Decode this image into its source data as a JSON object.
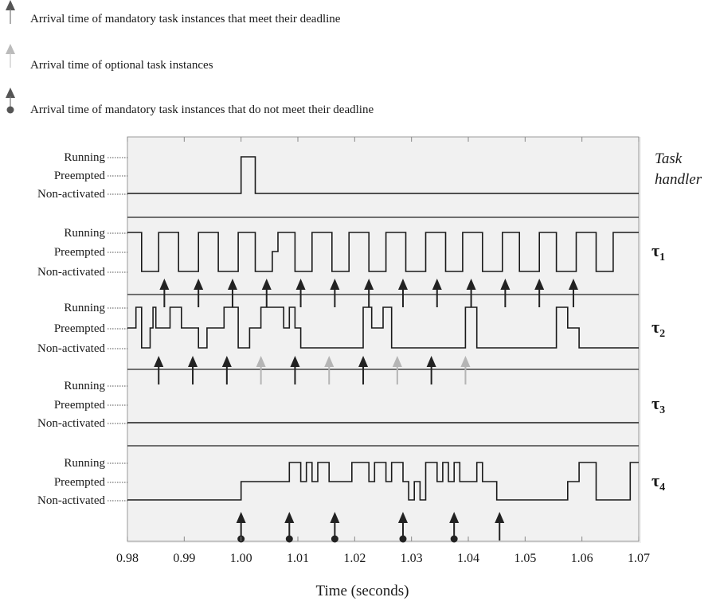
{
  "legend": [
    {
      "label": "Arrival time of mandatory task instances that meet their deadline",
      "marker": "mandatory-met-arrow",
      "color": "#333333"
    },
    {
      "label": "Arrival time of optional task instances",
      "marker": "optional-arrow",
      "color": "#aaaaaa"
    },
    {
      "label": "Arrival time of mandatory task instances that do not meet their deadline",
      "marker": "mandatory-missed-arrow",
      "color": "#333333"
    }
  ],
  "chart_data": {
    "type": "line",
    "xlabel": "Time (seconds)",
    "xlim": [
      0.98,
      1.07
    ],
    "x_ticks": [
      "0.98",
      "0.99",
      "1.00",
      "1.01",
      "1.02",
      "1.03",
      "1.04",
      "1.05",
      "1.06",
      "1.07"
    ],
    "state_levels": [
      "Running",
      "Preempted",
      "Non-activated"
    ],
    "grid": false,
    "panels": [
      {
        "name_parts": [
          "Task",
          "handler"
        ],
        "italic": true,
        "series": [
          [
            0.98,
            0
          ],
          [
            1.0,
            0
          ],
          [
            1.0,
            2
          ],
          [
            1.0025,
            2
          ],
          [
            1.0025,
            0
          ],
          [
            1.07,
            0
          ]
        ],
        "arrivals": []
      },
      {
        "name_parts": [
          "τ",
          "1"
        ],
        "series": [
          [
            0.98,
            2
          ],
          [
            0.9825,
            2
          ],
          [
            0.9825,
            0
          ],
          [
            0.9855,
            0
          ],
          [
            0.9855,
            2
          ],
          [
            0.989,
            2
          ],
          [
            0.989,
            0
          ],
          [
            0.9925,
            0
          ],
          [
            0.9925,
            2
          ],
          [
            0.996,
            2
          ],
          [
            0.996,
            0
          ],
          [
            0.9995,
            0
          ],
          [
            0.9995,
            2
          ],
          [
            1.0025,
            2
          ],
          [
            1.0025,
            0
          ],
          [
            1.0055,
            0
          ],
          [
            1.0055,
            1
          ],
          [
            1.0065,
            1
          ],
          [
            1.0065,
            2
          ],
          [
            1.0095,
            2
          ],
          [
            1.0095,
            0
          ],
          [
            1.0125,
            0
          ],
          [
            1.0125,
            2
          ],
          [
            1.016,
            2
          ],
          [
            1.016,
            0
          ],
          [
            1.019,
            0
          ],
          [
            1.019,
            2
          ],
          [
            1.0225,
            2
          ],
          [
            1.0225,
            0
          ],
          [
            1.0255,
            0
          ],
          [
            1.0255,
            2
          ],
          [
            1.029,
            2
          ],
          [
            1.029,
            0
          ],
          [
            1.0325,
            0
          ],
          [
            1.0325,
            2
          ],
          [
            1.036,
            2
          ],
          [
            1.036,
            0
          ],
          [
            1.039,
            0
          ],
          [
            1.039,
            2
          ],
          [
            1.0425,
            2
          ],
          [
            1.0425,
            0
          ],
          [
            1.046,
            0
          ],
          [
            1.046,
            2
          ],
          [
            1.049,
            2
          ],
          [
            1.049,
            0
          ],
          [
            1.0525,
            0
          ],
          [
            1.0525,
            2
          ],
          [
            1.0555,
            2
          ],
          [
            1.0555,
            0
          ],
          [
            1.059,
            0
          ],
          [
            1.059,
            2
          ],
          [
            1.0625,
            2
          ],
          [
            1.0625,
            0
          ],
          [
            1.0655,
            0
          ],
          [
            1.0655,
            2
          ],
          [
            1.07,
            2
          ]
        ],
        "arrivals": [
          {
            "t": 0.9865,
            "kind": "mandatory-met"
          },
          {
            "t": 0.9925,
            "kind": "mandatory-met"
          },
          {
            "t": 0.9985,
            "kind": "mandatory-met"
          },
          {
            "t": 1.0045,
            "kind": "mandatory-met"
          },
          {
            "t": 1.0105,
            "kind": "mandatory-met"
          },
          {
            "t": 1.0165,
            "kind": "mandatory-met"
          },
          {
            "t": 1.0225,
            "kind": "mandatory-met"
          },
          {
            "t": 1.0285,
            "kind": "mandatory-met"
          },
          {
            "t": 1.0345,
            "kind": "mandatory-met"
          },
          {
            "t": 1.0405,
            "kind": "mandatory-met"
          },
          {
            "t": 1.0465,
            "kind": "mandatory-met"
          },
          {
            "t": 1.0525,
            "kind": "mandatory-met"
          },
          {
            "t": 1.0585,
            "kind": "mandatory-met"
          }
        ]
      },
      {
        "name_parts": [
          "τ",
          "2"
        ],
        "series": [
          [
            0.98,
            1
          ],
          [
            0.9815,
            1
          ],
          [
            0.9815,
            2
          ],
          [
            0.9825,
            2
          ],
          [
            0.9825,
            0
          ],
          [
            0.984,
            0
          ],
          [
            0.984,
            1
          ],
          [
            0.9845,
            1
          ],
          [
            0.9845,
            2
          ],
          [
            0.985,
            2
          ],
          [
            0.985,
            1
          ],
          [
            0.9875,
            1
          ],
          [
            0.9875,
            2
          ],
          [
            0.9895,
            2
          ],
          [
            0.9895,
            1
          ],
          [
            0.9925,
            1
          ],
          [
            0.9925,
            0
          ],
          [
            0.994,
            0
          ],
          [
            0.994,
            1
          ],
          [
            0.997,
            1
          ],
          [
            0.997,
            2
          ],
          [
            0.9995,
            2
          ],
          [
            0.9995,
            0
          ],
          [
            1.0015,
            0
          ],
          [
            1.0015,
            1
          ],
          [
            1.0035,
            1
          ],
          [
            1.0035,
            2
          ],
          [
            1.0075,
            2
          ],
          [
            1.0075,
            1
          ],
          [
            1.0085,
            1
          ],
          [
            1.0085,
            2
          ],
          [
            1.0095,
            2
          ],
          [
            1.0095,
            1
          ],
          [
            1.0105,
            1
          ],
          [
            1.0105,
            0
          ],
          [
            1.0215,
            0
          ],
          [
            1.0215,
            2
          ],
          [
            1.023,
            2
          ],
          [
            1.023,
            1
          ],
          [
            1.025,
            1
          ],
          [
            1.025,
            2
          ],
          [
            1.0265,
            2
          ],
          [
            1.0265,
            0
          ],
          [
            1.0395,
            0
          ],
          [
            1.0395,
            2
          ],
          [
            1.0415,
            2
          ],
          [
            1.0415,
            0
          ],
          [
            1.0555,
            0
          ],
          [
            1.0555,
            2
          ],
          [
            1.0575,
            2
          ],
          [
            1.0575,
            1
          ],
          [
            1.0595,
            1
          ],
          [
            1.0595,
            0
          ],
          [
            1.07,
            0
          ]
        ],
        "arrivals": [
          {
            "t": 0.9855,
            "kind": "mandatory-met"
          },
          {
            "t": 0.9915,
            "kind": "mandatory-met"
          },
          {
            "t": 0.9975,
            "kind": "mandatory-met"
          },
          {
            "t": 1.0035,
            "kind": "optional"
          },
          {
            "t": 1.0095,
            "kind": "mandatory-met"
          },
          {
            "t": 1.0155,
            "kind": "optional"
          },
          {
            "t": 1.0215,
            "kind": "mandatory-met"
          },
          {
            "t": 1.0275,
            "kind": "optional"
          },
          {
            "t": 1.0335,
            "kind": "mandatory-met"
          },
          {
            "t": 1.0395,
            "kind": "optional"
          }
        ]
      },
      {
        "name_parts": [
          "τ",
          "3"
        ],
        "series": [
          [
            0.98,
            0
          ],
          [
            1.07,
            0
          ]
        ],
        "arrivals": []
      },
      {
        "name_parts": [
          "τ",
          "4"
        ],
        "series": [
          [
            0.98,
            0
          ],
          [
            1.0,
            0
          ],
          [
            1.0,
            1
          ],
          [
            1.0085,
            1
          ],
          [
            1.0085,
            2
          ],
          [
            1.0105,
            2
          ],
          [
            1.0105,
            1
          ],
          [
            1.0115,
            1
          ],
          [
            1.0115,
            2
          ],
          [
            1.0125,
            2
          ],
          [
            1.0125,
            1
          ],
          [
            1.0135,
            1
          ],
          [
            1.0135,
            2
          ],
          [
            1.0155,
            2
          ],
          [
            1.0155,
            1
          ],
          [
            1.0195,
            1
          ],
          [
            1.0195,
            2
          ],
          [
            1.0225,
            2
          ],
          [
            1.0225,
            1
          ],
          [
            1.0235,
            1
          ],
          [
            1.0235,
            2
          ],
          [
            1.0255,
            2
          ],
          [
            1.0255,
            1
          ],
          [
            1.0265,
            1
          ],
          [
            1.0265,
            2
          ],
          [
            1.0285,
            2
          ],
          [
            1.0285,
            1
          ],
          [
            1.0295,
            1
          ],
          [
            1.0295,
            0
          ],
          [
            1.0305,
            0
          ],
          [
            1.0305,
            1
          ],
          [
            1.0315,
            1
          ],
          [
            1.0315,
            0
          ],
          [
            1.0325,
            0
          ],
          [
            1.0325,
            2
          ],
          [
            1.0345,
            2
          ],
          [
            1.0345,
            1
          ],
          [
            1.0355,
            1
          ],
          [
            1.0355,
            2
          ],
          [
            1.0365,
            2
          ],
          [
            1.0365,
            1
          ],
          [
            1.0375,
            1
          ],
          [
            1.0375,
            2
          ],
          [
            1.0385,
            2
          ],
          [
            1.0385,
            1
          ],
          [
            1.0415,
            1
          ],
          [
            1.0415,
            2
          ],
          [
            1.0425,
            2
          ],
          [
            1.0425,
            1
          ],
          [
            1.045,
            1
          ],
          [
            1.045,
            0
          ],
          [
            1.0575,
            0
          ],
          [
            1.0575,
            1
          ],
          [
            1.0595,
            1
          ],
          [
            1.0595,
            2
          ],
          [
            1.0625,
            2
          ],
          [
            1.0625,
            0
          ],
          [
            1.0685,
            0
          ],
          [
            1.0685,
            2
          ],
          [
            1.07,
            2
          ]
        ],
        "arrivals": [
          {
            "t": 1.0,
            "kind": "mandatory-missed"
          },
          {
            "t": 1.0085,
            "kind": "mandatory-missed"
          },
          {
            "t": 1.0165,
            "kind": "mandatory-missed"
          },
          {
            "t": 1.0285,
            "kind": "mandatory-missed"
          },
          {
            "t": 1.0375,
            "kind": "mandatory-missed"
          },
          {
            "t": 1.0455,
            "kind": "mandatory-met"
          }
        ]
      }
    ]
  }
}
